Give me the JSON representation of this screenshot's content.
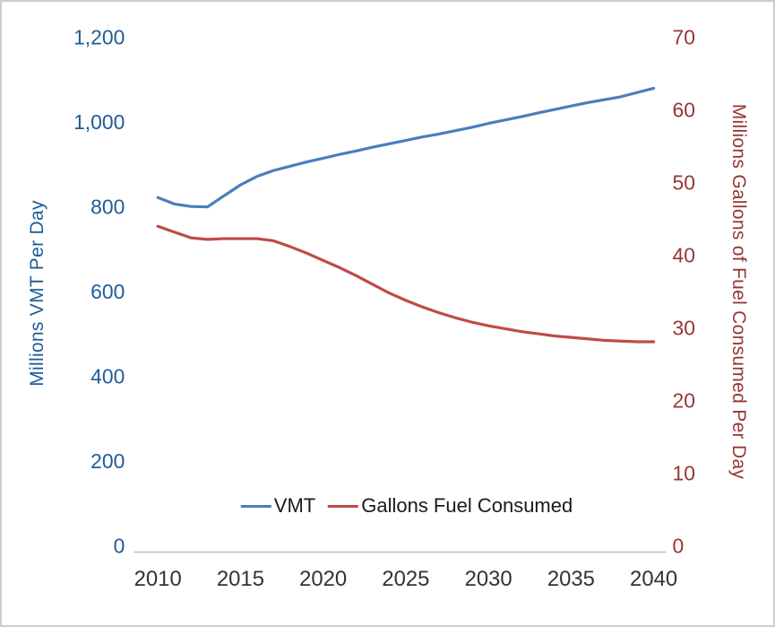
{
  "chart_data": {
    "type": "line",
    "title": "",
    "grid": false,
    "x": [
      2010,
      2011,
      2012,
      2013,
      2014,
      2015,
      2016,
      2017,
      2018,
      2019,
      2020,
      2021,
      2022,
      2023,
      2024,
      2025,
      2026,
      2027,
      2028,
      2029,
      2030,
      2031,
      2032,
      2033,
      2034,
      2035,
      2036,
      2037,
      2038,
      2039,
      2040
    ],
    "x_tick_labels": [
      "2010",
      "2015",
      "2020",
      "2025",
      "2030",
      "2035",
      "2040"
    ],
    "left_axis": {
      "label": "Millions VMT Per Day",
      "min": 0,
      "max": 1200,
      "tick_labels": [
        "0",
        "200",
        "400",
        "600",
        "800",
        "1,000",
        "1,200"
      ],
      "color": "#1F5C99"
    },
    "right_axis": {
      "label": "Millions Gallons of Fuel Consumed Per Day",
      "min": 0,
      "max": 70,
      "tick_labels": [
        "0",
        "10",
        "20",
        "30",
        "40",
        "50",
        "60",
        "70"
      ],
      "color": "#953735"
    },
    "series": [
      {
        "name": "VMT",
        "axis": "left",
        "color": "#4A7EBB",
        "values": [
          822,
          807,
          801,
          800,
          826,
          852,
          872,
          886,
          896,
          906,
          915,
          924,
          932,
          941,
          949,
          957,
          965,
          972,
          980,
          988,
          997,
          1005,
          1013,
          1022,
          1030,
          1038,
          1046,
          1053,
          1060,
          1070,
          1080
        ]
      },
      {
        "name": "Gallons Fuel Consumed",
        "axis": "right",
        "color": "#BE4B48",
        "values": [
          44.0,
          43.2,
          42.4,
          42.2,
          42.3,
          42.3,
          42.3,
          42.0,
          41.2,
          40.3,
          39.3,
          38.3,
          37.2,
          36.0,
          34.8,
          33.8,
          32.9,
          32.1,
          31.4,
          30.8,
          30.3,
          29.9,
          29.5,
          29.2,
          28.9,
          28.7,
          28.5,
          28.3,
          28.2,
          28.1,
          28.1
        ]
      }
    ],
    "legend": {
      "position": "bottom-center",
      "entries": [
        "VMT",
        "Gallons Fuel Consumed"
      ]
    },
    "axis_line_color": "#BFBFBF",
    "x_tick_color": "#333333"
  }
}
